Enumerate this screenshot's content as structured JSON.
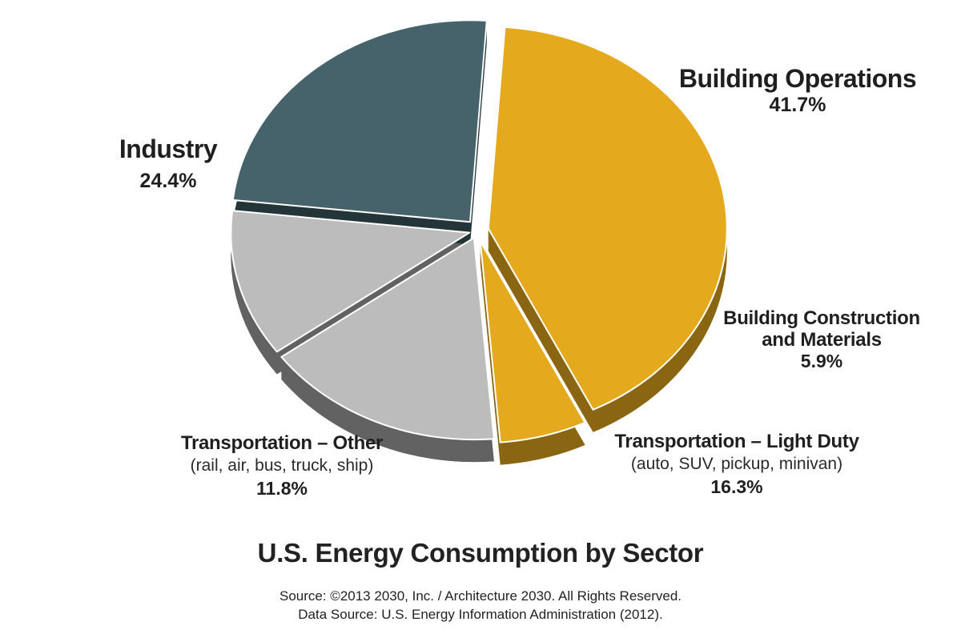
{
  "chart_data": {
    "type": "pie",
    "title": "U.S. Energy Consumption by Sector",
    "unit": "%",
    "slices": [
      {
        "key": "building-operations",
        "label": "Building Operations",
        "sublabel": "",
        "value": 41.7,
        "value_label": "41.7%",
        "color": "#E4A91C",
        "side_color": "#8A6612"
      },
      {
        "key": "building-construction",
        "label": "Building Construction and Materials",
        "label_lines": [
          "Building Construction",
          "and Materials"
        ],
        "sublabel": "",
        "value": 5.9,
        "value_label": "5.9%",
        "color": "#E4A91C",
        "side_color": "#8A6612"
      },
      {
        "key": "transportation-light-duty",
        "label": "Transportation – Light Duty",
        "sublabel": "(auto, SUV, pickup, minivan)",
        "value": 16.3,
        "value_label": "16.3%",
        "color": "#BCBCBC",
        "side_color": "#626262"
      },
      {
        "key": "transportation-other",
        "label": "Transportation – Other",
        "sublabel": "(rail, air, bus, truck, ship)",
        "value": 11.8,
        "value_label": "11.8%",
        "color": "#BCBCBC",
        "side_color": "#626262"
      },
      {
        "key": "industry",
        "label": "Industry",
        "sublabel": "",
        "value": 24.4,
        "value_label": "24.4%",
        "color": "#46626A",
        "side_color": "#243539"
      }
    ]
  },
  "source": {
    "line1": "Source: ©2013 2030, Inc. / Architecture 2030. All Rights Reserved.",
    "line2": "Data Source: U.S. Energy Information Administration (2012)."
  }
}
